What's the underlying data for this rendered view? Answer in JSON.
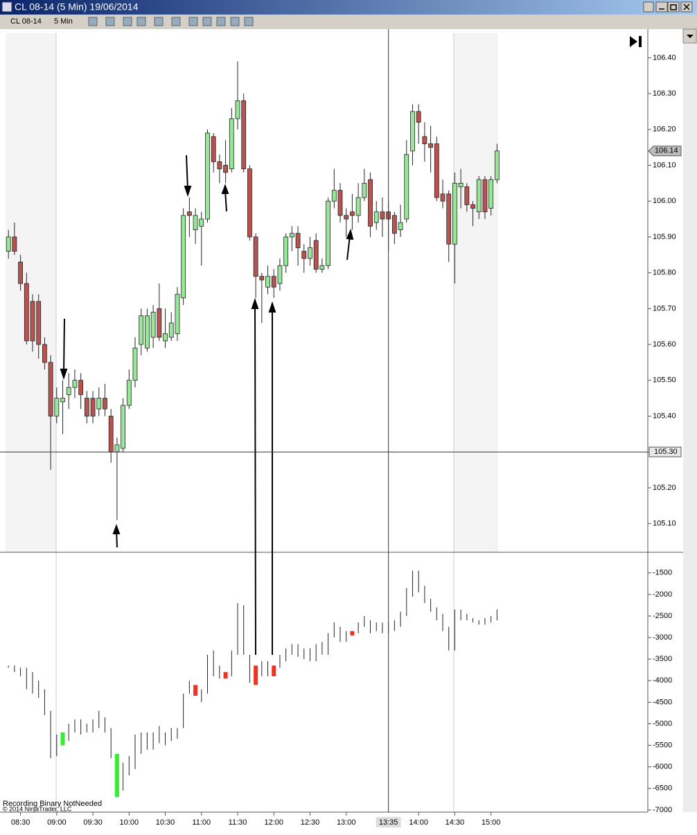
{
  "window": {
    "title": "CL 08-14 (5 Min)  19/06/2014",
    "instrument": "CL 08-14",
    "interval": "5 Min",
    "status": "Recording Binary NotNeeded",
    "copyright": "© 2014 NinjaTrader, LLC"
  },
  "chart_data": [
    {
      "type": "candlestick",
      "up_color": "#98e698",
      "down_color": "#b85450",
      "x": [
        500,
        505,
        510,
        515,
        520,
        525,
        530,
        535,
        540,
        545,
        550,
        555,
        560,
        565,
        570,
        575,
        580,
        585,
        590,
        595,
        600,
        605,
        610,
        615,
        620,
        625,
        630,
        635,
        640,
        645,
        650,
        655,
        660,
        665,
        670,
        675,
        680,
        685,
        690,
        695,
        700,
        705,
        710,
        715,
        720,
        725,
        730,
        735,
        740,
        745,
        750,
        755,
        760,
        765,
        770,
        775,
        780,
        785,
        790,
        795,
        800,
        805,
        810,
        815,
        820,
        825,
        830,
        835,
        840,
        845,
        850,
        855,
        860,
        865,
        870,
        875,
        880,
        885,
        890,
        895,
        900,
        905
      ],
      "open": [
        105.86,
        105.9,
        105.83,
        105.77,
        105.72,
        105.72,
        105.6,
        105.55,
        105.4,
        105.44,
        105.46,
        105.48,
        105.5,
        105.45,
        105.45,
        105.42,
        105.45,
        105.4,
        105.3,
        105.31,
        105.43,
        105.5,
        105.6,
        105.59,
        105.62,
        105.7,
        105.61,
        105.62,
        105.63,
        105.73,
        105.97,
        105.92,
        105.93,
        105.95,
        106.18,
        106.11,
        106.1,
        106.09,
        106.23,
        106.28,
        106.09,
        105.9,
        105.79,
        105.76,
        105.79,
        105.77,
        105.82,
        105.9,
        105.91,
        105.86,
        105.84,
        105.89,
        105.81,
        105.82,
        106.0,
        106.03,
        105.96,
        105.97,
        105.96,
        106.01,
        106.06,
        105.94,
        105.97,
        105.97,
        105.96,
        105.92,
        105.95,
        106.14,
        106.25,
        106.18,
        106.16,
        106.16,
        106.02,
        106.02,
        105.88,
        106.04,
        106.04,
        105.99,
        105.97,
        106.06,
        105.98,
        106.06
      ],
      "close": [
        105.9,
        105.86,
        105.77,
        105.61,
        105.61,
        105.6,
        105.55,
        105.4,
        105.45,
        105.45,
        105.48,
        105.5,
        105.46,
        105.4,
        105.4,
        105.45,
        105.42,
        105.3,
        105.32,
        105.43,
        105.5,
        105.59,
        105.68,
        105.68,
        105.69,
        105.62,
        105.63,
        105.66,
        105.74,
        105.96,
        105.96,
        105.96,
        105.95,
        106.19,
        106.11,
        106.09,
        106.08,
        106.23,
        106.28,
        106.09,
        105.9,
        105.79,
        105.78,
        105.79,
        105.76,
        105.82,
        105.9,
        105.91,
        105.87,
        105.84,
        105.87,
        105.81,
        105.82,
        106.0,
        106.03,
        105.96,
        105.95,
        105.96,
        106.01,
        106.05,
        105.93,
        105.97,
        105.95,
        105.95,
        105.91,
        105.94,
        106.13,
        106.25,
        106.22,
        106.16,
        106.15,
        106.01,
        106.0,
        105.88,
        106.05,
        106.05,
        105.99,
        105.98,
        106.06,
        105.97,
        106.06,
        106.14
      ],
      "high": [
        105.92,
        105.94,
        105.85,
        105.8,
        105.74,
        105.74,
        105.62,
        105.57,
        105.48,
        105.5,
        105.52,
        105.53,
        105.52,
        105.47,
        105.47,
        105.48,
        105.49,
        105.42,
        105.34,
        105.45,
        105.53,
        105.62,
        105.7,
        105.7,
        105.71,
        105.77,
        105.7,
        105.69,
        105.76,
        105.98,
        106.01,
        105.98,
        105.97,
        106.2,
        106.19,
        106.13,
        106.17,
        106.26,
        106.39,
        106.3,
        106.1,
        105.91,
        105.8,
        105.82,
        105.81,
        105.84,
        105.91,
        105.93,
        105.93,
        105.88,
        105.9,
        105.91,
        105.84,
        106.01,
        106.09,
        106.05,
        105.98,
        106.02,
        106.05,
        106.09,
        106.08,
        106.0,
        106.01,
        106.0,
        105.97,
        105.99,
        106.17,
        106.27,
        106.27,
        106.22,
        106.21,
        106.18,
        106.06,
        106.03,
        106.08,
        106.09,
        106.05,
        106.0,
        106.07,
        106.07,
        106.07,
        106.16
      ],
      "low": [
        105.84,
        105.85,
        105.75,
        105.6,
        105.58,
        105.56,
        105.53,
        105.25,
        105.38,
        105.35,
        105.42,
        105.45,
        105.42,
        105.38,
        105.38,
        105.4,
        105.4,
        105.27,
        105.11,
        105.3,
        105.42,
        105.48,
        105.57,
        105.58,
        105.59,
        105.61,
        105.59,
        105.61,
        105.61,
        105.71,
        105.9,
        105.88,
        105.82,
        105.94,
        106.08,
        106.05,
        106.05,
        106.08,
        106.2,
        106.08,
        105.89,
        105.73,
        105.66,
        105.74,
        105.73,
        105.75,
        105.8,
        105.86,
        105.82,
        105.8,
        105.82,
        105.8,
        105.8,
        105.81,
        105.98,
        105.94,
        105.9,
        105.92,
        105.94,
        106.0,
        105.9,
        105.92,
        105.9,
        105.86,
        105.88,
        105.9,
        105.94,
        106.1,
        106.16,
        106.11,
        106.08,
        106.0,
        105.98,
        105.83,
        105.77,
        105.98,
        105.97,
        105.93,
        105.95,
        105.95,
        105.96,
        106.05
      ],
      "xlim": [
        493,
        1030
      ],
      "ylim": [
        105.02,
        106.48
      ],
      "xticks": [
        {
          "value": 510,
          "label": "08:30"
        },
        {
          "value": 540,
          "label": "09:00"
        },
        {
          "value": 570,
          "label": "09:30"
        },
        {
          "value": 600,
          "label": "10:00"
        },
        {
          "value": 630,
          "label": "10:30"
        },
        {
          "value": 660,
          "label": "11:00"
        },
        {
          "value": 690,
          "label": "11:30"
        },
        {
          "value": 720,
          "label": "12:00"
        },
        {
          "value": 750,
          "label": "12:30"
        },
        {
          "value": 780,
          "label": "13:00"
        },
        {
          "value": 840,
          "label": "14:00"
        },
        {
          "value": 870,
          "label": "14:30"
        },
        {
          "value": 900,
          "label": "15:00"
        }
      ],
      "yticks": [
        {
          "value": 105.1,
          "label": "105.10"
        },
        {
          "value": 105.2,
          "label": "105.20"
        },
        {
          "value": 105.3,
          "label": "105.30"
        },
        {
          "value": 105.4,
          "label": "105.40"
        },
        {
          "value": 105.5,
          "label": "105.50"
        },
        {
          "value": 105.6,
          "label": "105.60"
        },
        {
          "value": 105.7,
          "label": "105.70"
        },
        {
          "value": 105.8,
          "label": "105.80"
        },
        {
          "value": 105.9,
          "label": "105.90"
        },
        {
          "value": 106.0,
          "label": "106.00"
        },
        {
          "value": 106.1,
          "label": "106.10"
        },
        {
          "value": 106.2,
          "label": "106.20"
        },
        {
          "value": 106.3,
          "label": "106.30"
        },
        {
          "value": 106.4,
          "label": "106.40"
        }
      ],
      "last_price": 106.14,
      "crosshair": {
        "price": {
          "value": 105.3,
          "label": "105.30"
        },
        "time": {
          "value": 815,
          "label": "13:35"
        }
      }
    },
    {
      "type": "range_bar",
      "ylim": [
        -7050,
        -1070
      ],
      "yticks": [
        -1500,
        -2000,
        -2500,
        -3000,
        -3500,
        -4000,
        -4500,
        -5000,
        -5500,
        -6000,
        -6500,
        -7000
      ],
      "high": [
        -3650,
        -3650,
        -3700,
        -3700,
        -3800,
        -4000,
        -4200,
        -4700,
        -5250,
        -5200,
        -5000,
        -4900,
        -4900,
        -5000,
        -4900,
        -4700,
        -4850,
        -5100,
        -5700,
        -5900,
        -5750,
        -5250,
        -5200,
        -5200,
        -5200,
        -5050,
        -5200,
        -5100,
        -5100,
        -4300,
        -4000,
        -4100,
        -4200,
        -3400,
        -3300,
        -3650,
        -3800,
        -3300,
        -2200,
        -2250,
        -3400,
        -3650,
        -3550,
        -3550,
        -3650,
        -3400,
        -3250,
        -3150,
        -3150,
        -3250,
        -3250,
        -3150,
        -3100,
        -2900,
        -2650,
        -2750,
        -2850,
        -2850,
        -2650,
        -2500,
        -2600,
        -2650,
        -2650,
        -2650,
        -2600,
        -2400,
        -1850,
        -1450,
        -1450,
        -1800,
        -2100,
        -2300,
        -2450,
        -2750,
        -2350,
        -2350,
        -2450,
        -2550,
        -2600,
        -2550,
        -2500,
        -2350
      ],
      "low": [
        -3700,
        -3800,
        -3900,
        -4200,
        -4300,
        -4400,
        -4800,
        -5800,
        -5750,
        -5500,
        -5400,
        -5200,
        -5250,
        -5200,
        -5200,
        -5100,
        -5200,
        -5800,
        -6700,
        -6550,
        -6200,
        -6050,
        -5700,
        -5600,
        -5600,
        -5450,
        -5500,
        -5400,
        -5350,
        -5100,
        -4300,
        -4350,
        -4500,
        -4300,
        -3900,
        -3950,
        -3950,
        -3900,
        -3400,
        -3400,
        -4050,
        -4100,
        -3900,
        -3900,
        -3900,
        -3700,
        -3550,
        -3400,
        -3450,
        -3500,
        -3550,
        -3550,
        -3400,
        -3400,
        -3000,
        -3100,
        -3100,
        -2950,
        -2900,
        -2750,
        -2900,
        -2850,
        -2900,
        -2900,
        -2850,
        -2750,
        -2500,
        -2050,
        -1950,
        -2200,
        -2400,
        -2600,
        -2850,
        -3300,
        -3300,
        -2600,
        -2600,
        -2650,
        -2700,
        -2700,
        -2650,
        -2600
      ],
      "colors": [
        null,
        null,
        null,
        null,
        null,
        null,
        null,
        null,
        null,
        "#33ee33",
        null,
        null,
        null,
        null,
        null,
        null,
        null,
        null,
        "#33ee33",
        null,
        null,
        null,
        null,
        null,
        null,
        null,
        null,
        null,
        null,
        null,
        null,
        "#ee3322",
        null,
        null,
        null,
        null,
        "#ee3322",
        null,
        null,
        null,
        null,
        "#ee3322",
        null,
        null,
        "#ee3322",
        null,
        null,
        null,
        null,
        null,
        null,
        null,
        null,
        null,
        null,
        null,
        null,
        "#ee3322",
        null,
        null,
        null,
        null,
        null,
        null,
        null,
        null,
        null,
        null,
        null,
        null,
        null,
        null,
        null,
        null,
        null,
        null,
        null,
        null,
        null,
        null,
        null,
        null
      ]
    }
  ]
}
